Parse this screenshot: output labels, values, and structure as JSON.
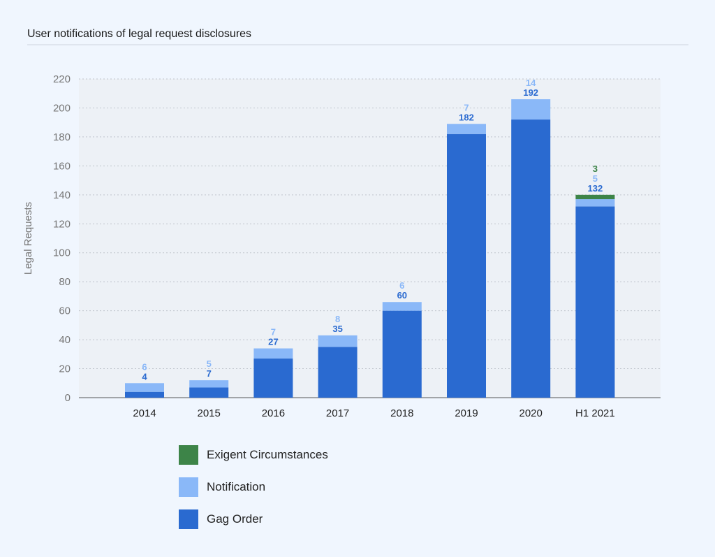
{
  "chart_data": {
    "type": "bar",
    "stacked": true,
    "title": "User notifications of legal request disclosures",
    "xlabel": "",
    "ylabel": "Legal Requests",
    "ylim": [
      0,
      220
    ],
    "yticks": [
      0,
      20,
      40,
      60,
      80,
      100,
      120,
      140,
      160,
      180,
      200,
      220
    ],
    "grid": true,
    "legend_position": "bottom-left",
    "categories": [
      "2014",
      "2015",
      "2016",
      "2017",
      "2018",
      "2019",
      "2020",
      "H1 2021"
    ],
    "series": [
      {
        "name": "Gag Order",
        "color": "#2a6ad0",
        "values": [
          4,
          7,
          27,
          35,
          60,
          182,
          192,
          132
        ]
      },
      {
        "name": "Notification",
        "color": "#8ab8f8",
        "values": [
          6,
          5,
          7,
          8,
          6,
          7,
          14,
          5
        ]
      },
      {
        "name": "Exigent Circumstances",
        "color": "#3d8448",
        "values": [
          0,
          0,
          0,
          0,
          0,
          0,
          0,
          3
        ]
      }
    ],
    "legend": [
      "Exigent Circumstances",
      "Notification",
      "Gag Order"
    ]
  }
}
